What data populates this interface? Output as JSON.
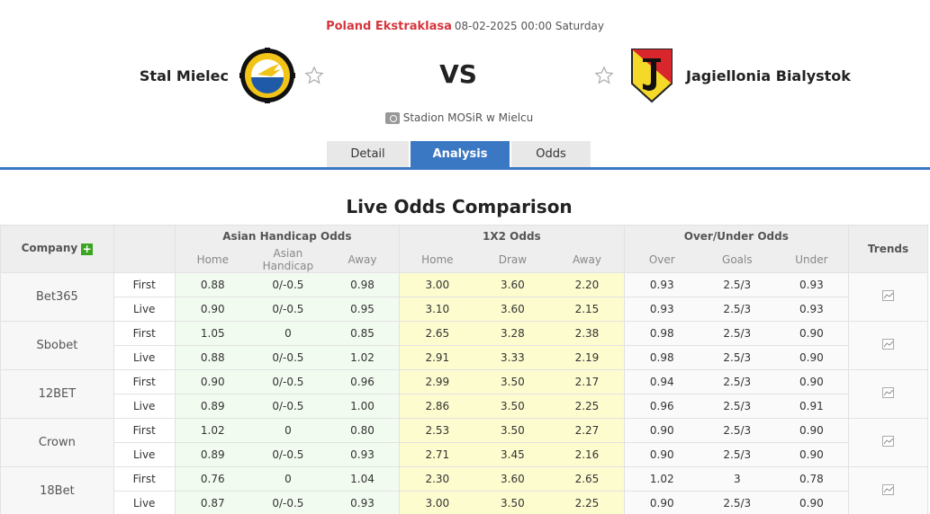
{
  "match": {
    "league": "Poland Ekstraklasa",
    "datetime": "08-02-2025 00:00 Saturday",
    "home_team": "Stal Mielec",
    "away_team": "Jagiellonia Bialystok",
    "vs_label": "VS",
    "venue": "Stadion MOSiR w Mielcu"
  },
  "tabs": [
    {
      "label": "Detail",
      "active": false
    },
    {
      "label": "Analysis",
      "active": true
    },
    {
      "label": "Odds",
      "active": false
    }
  ],
  "section_title": "Live Odds Comparison",
  "table": {
    "company_header": "Company",
    "groups": {
      "asian_handicap": "Asian Handicap Odds",
      "x12": "1X2 Odds",
      "over_under": "Over/Under Odds",
      "trends": "Trends"
    },
    "subheaders": {
      "ah": [
        "Home",
        "Asian Handicap",
        "Away"
      ],
      "x12": [
        "Home",
        "Draw",
        "Away"
      ],
      "ou": [
        "Over",
        "Goals",
        "Under"
      ]
    },
    "companies": [
      {
        "name": "Bet365",
        "rows": [
          {
            "type": "First",
            "ah": [
              "0.88",
              "0/-0.5",
              "0.98"
            ],
            "x12": [
              "3.00",
              "3.60",
              "2.20"
            ],
            "ou": [
              "0.93",
              "2.5/3",
              "0.93"
            ]
          },
          {
            "type": "Live",
            "ah": [
              "0.90",
              "0/-0.5",
              "0.95"
            ],
            "x12": [
              "3.10",
              "3.60",
              "2.15"
            ],
            "ou": [
              "0.93",
              "2.5/3",
              "0.93"
            ]
          }
        ]
      },
      {
        "name": "Sbobet",
        "rows": [
          {
            "type": "First",
            "ah": [
              "1.05",
              "0",
              "0.85"
            ],
            "x12": [
              "2.65",
              "3.28",
              "2.38"
            ],
            "ou": [
              "0.98",
              "2.5/3",
              "0.90"
            ]
          },
          {
            "type": "Live",
            "ah": [
              "0.88",
              "0/-0.5",
              "1.02"
            ],
            "x12": [
              "2.91",
              "3.33",
              "2.19"
            ],
            "ou": [
              "0.98",
              "2.5/3",
              "0.90"
            ]
          }
        ]
      },
      {
        "name": "12BET",
        "rows": [
          {
            "type": "First",
            "ah": [
              "0.90",
              "0/-0.5",
              "0.96"
            ],
            "x12": [
              "2.99",
              "3.50",
              "2.17"
            ],
            "ou": [
              "0.94",
              "2.5/3",
              "0.90"
            ]
          },
          {
            "type": "Live",
            "ah": [
              "0.89",
              "0/-0.5",
              "1.00"
            ],
            "x12": [
              "2.86",
              "3.50",
              "2.25"
            ],
            "ou": [
              "0.96",
              "2.5/3",
              "0.91"
            ]
          }
        ]
      },
      {
        "name": "Crown",
        "rows": [
          {
            "type": "First",
            "ah": [
              "1.02",
              "0",
              "0.80"
            ],
            "x12": [
              "2.53",
              "3.50",
              "2.27"
            ],
            "ou": [
              "0.90",
              "2.5/3",
              "0.90"
            ]
          },
          {
            "type": "Live",
            "ah": [
              "0.89",
              "0/-0.5",
              "0.93"
            ],
            "x12": [
              "2.71",
              "3.45",
              "2.16"
            ],
            "ou": [
              "0.90",
              "2.5/3",
              "0.90"
            ]
          }
        ]
      },
      {
        "name": "18Bet",
        "rows": [
          {
            "type": "First",
            "ah": [
              "0.76",
              "0",
              "1.04"
            ],
            "x12": [
              "2.30",
              "3.60",
              "2.65"
            ],
            "ou": [
              "1.02",
              "3",
              "0.78"
            ]
          },
          {
            "type": "Live",
            "ah": [
              "0.87",
              "0/-0.5",
              "0.93"
            ],
            "x12": [
              "3.00",
              "3.50",
              "2.25"
            ],
            "ou": [
              "0.90",
              "2.5/3",
              "0.90"
            ]
          }
        ]
      }
    ]
  },
  "colors": {
    "accent": "#3b78c4",
    "league": "#d6353d",
    "ah_bg": "#f2fbf0",
    "x12_bg": "#fdfccf",
    "plus_green": "#3aa520"
  }
}
